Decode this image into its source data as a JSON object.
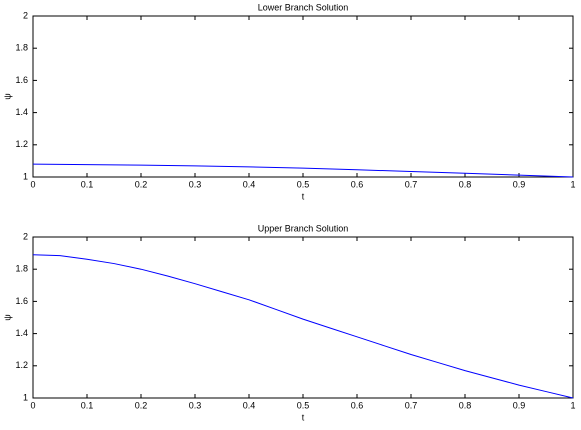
{
  "chart_data": [
    {
      "type": "line",
      "title": "Lower Branch Solution",
      "x_label": "t",
      "y_label": "ψ",
      "x": [
        0,
        0.1,
        0.2,
        0.3,
        0.4,
        0.5,
        0.6,
        0.7,
        0.8,
        0.9,
        1
      ],
      "series": [
        {
          "color": "#0000ff",
          "values": [
            1.08,
            1.077,
            1.074,
            1.069,
            1.063,
            1.055,
            1.045,
            1.034,
            1.023,
            1.012,
            1.0
          ]
        }
      ],
      "xlim": [
        0,
        1
      ],
      "ylim": [
        1,
        2
      ],
      "xticks": [
        0,
        0.1,
        0.2,
        0.3,
        0.4,
        0.5,
        0.6,
        0.7,
        0.8,
        0.9,
        1
      ],
      "yticks": [
        1,
        1.2,
        1.4,
        1.6,
        1.8,
        2
      ],
      "grid": false
    },
    {
      "type": "line",
      "title": "Upper Branch Solution",
      "x_label": "t",
      "y_label": "ψ",
      "x": [
        0,
        0.05,
        0.1,
        0.15,
        0.2,
        0.25,
        0.3,
        0.35,
        0.4,
        0.45,
        0.5,
        0.55,
        0.6,
        0.65,
        0.7,
        0.75,
        0.8,
        0.85,
        0.9,
        0.95,
        1
      ],
      "series": [
        {
          "color": "#0000ff",
          "values": [
            1.89,
            1.884,
            1.862,
            1.835,
            1.8,
            1.757,
            1.71,
            1.66,
            1.61,
            1.55,
            1.49,
            1.435,
            1.38,
            1.325,
            1.27,
            1.22,
            1.17,
            1.125,
            1.08,
            1.04,
            1.0
          ]
        }
      ],
      "xlim": [
        0,
        1
      ],
      "ylim": [
        1,
        2
      ],
      "xticks": [
        0,
        0.1,
        0.2,
        0.3,
        0.4,
        0.5,
        0.6,
        0.7,
        0.8,
        0.9,
        1
      ],
      "yticks": [
        1,
        1.2,
        1.4,
        1.6,
        1.8,
        2
      ],
      "grid": false
    }
  ]
}
